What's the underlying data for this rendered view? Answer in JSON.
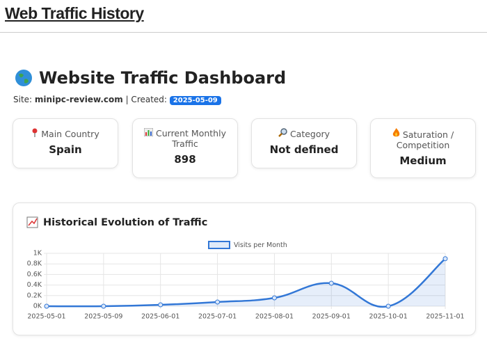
{
  "header": {
    "title": "Web Traffic History"
  },
  "dashboard": {
    "title": "Website Traffic Dashboard",
    "site_label": "Site:",
    "site": "minipc-review.com",
    "created_label": "| Created:",
    "created": "2025-05-09"
  },
  "cards": [
    {
      "label": "Main Country",
      "value": "Spain"
    },
    {
      "label": "Current Monthly Traffic",
      "value": 898
    },
    {
      "label": "Category",
      "value": "Not defined"
    },
    {
      "label": "Saturation / Competition",
      "value": "Medium"
    }
  ],
  "chart_data": {
    "type": "line",
    "title": "Historical Evolution of Traffic",
    "categories": [
      "2025-05-01",
      "2025-05-09",
      "2025-06-01",
      "2025-07-01",
      "2025-08-01",
      "2025-09-01",
      "2025-10-01",
      "2025-11-01"
    ],
    "series": [
      {
        "name": "Visits per Month",
        "color": "#3277d6",
        "values": [
          0,
          0,
          26,
          79,
          158,
          434,
          0,
          898
        ]
      }
    ],
    "ylim": [
      0,
      1000
    ],
    "yticks": [
      {
        "value": 0,
        "label": "0K"
      },
      {
        "value": 200,
        "label": "0.2K"
      },
      {
        "value": 400,
        "label": "0.4K"
      },
      {
        "value": 600,
        "label": "0.6K"
      },
      {
        "value": 800,
        "label": "0.8K"
      },
      {
        "value": 1000,
        "label": "1K"
      }
    ],
    "grid": true,
    "legend": "top"
  }
}
